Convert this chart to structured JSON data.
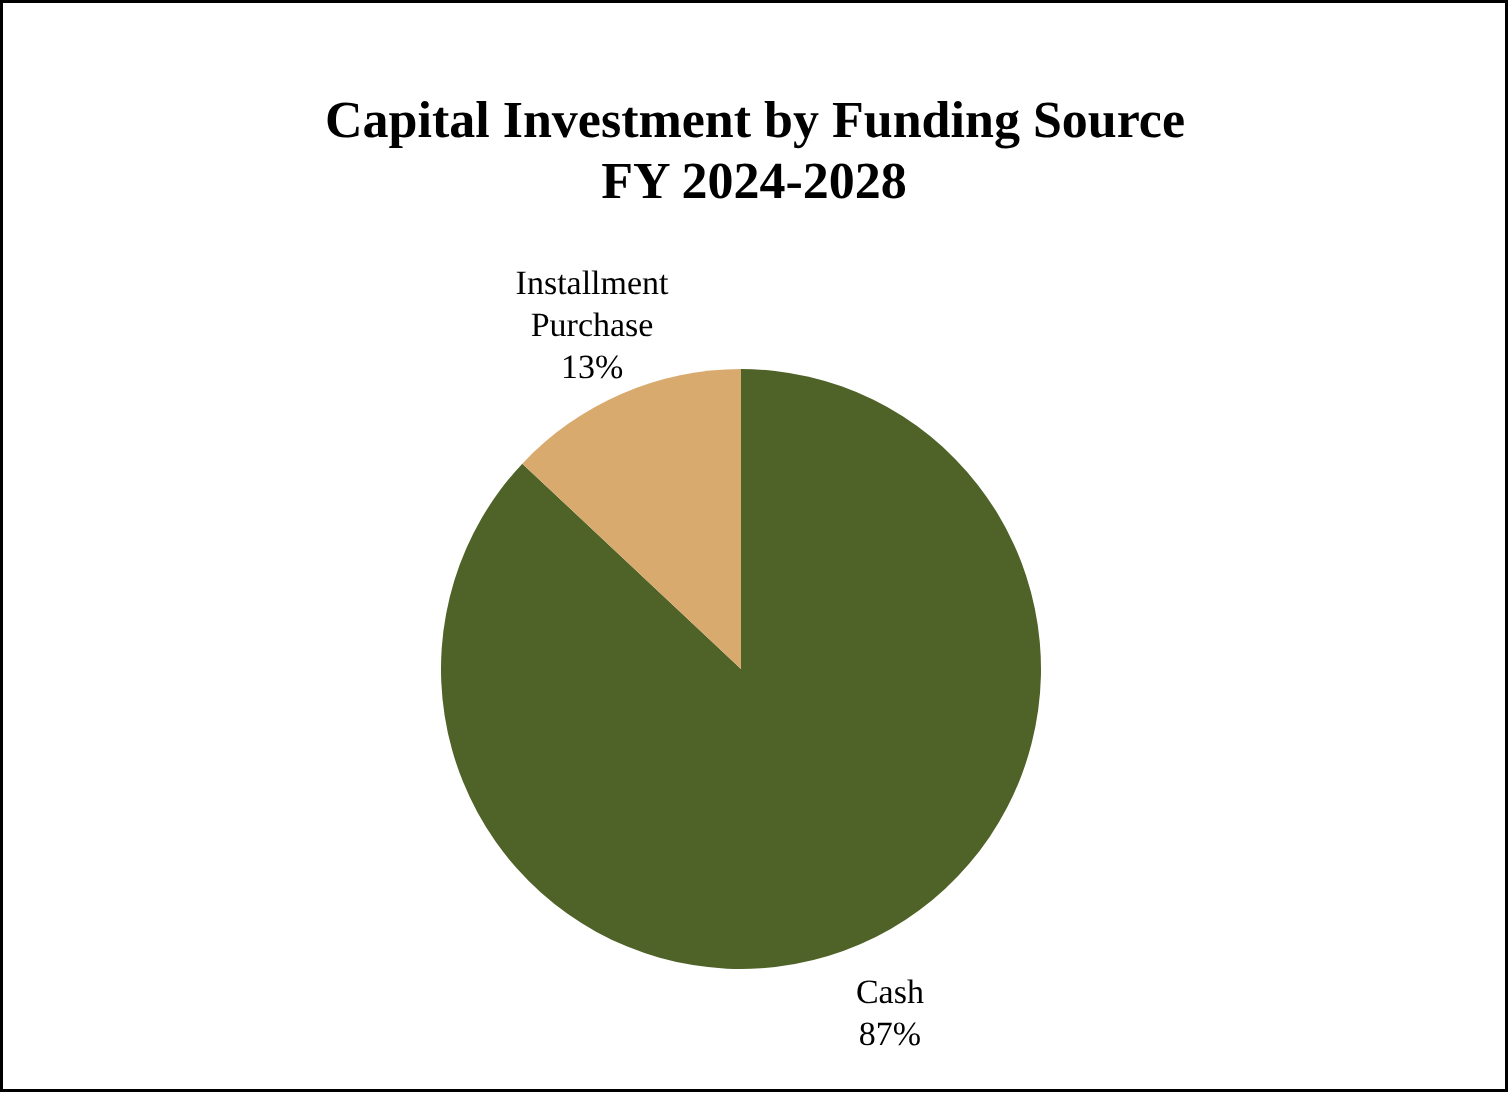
{
  "chart_data": {
    "type": "pie",
    "title": "Capital Investment by Funding Source\nFY 2024-2028",
    "categories": [
      "Cash",
      "Installment Purchase"
    ],
    "values": [
      87,
      13
    ],
    "value_labels": [
      "87%",
      "13%"
    ],
    "colors": [
      "#4f6228",
      "#d8aa6e"
    ]
  }
}
